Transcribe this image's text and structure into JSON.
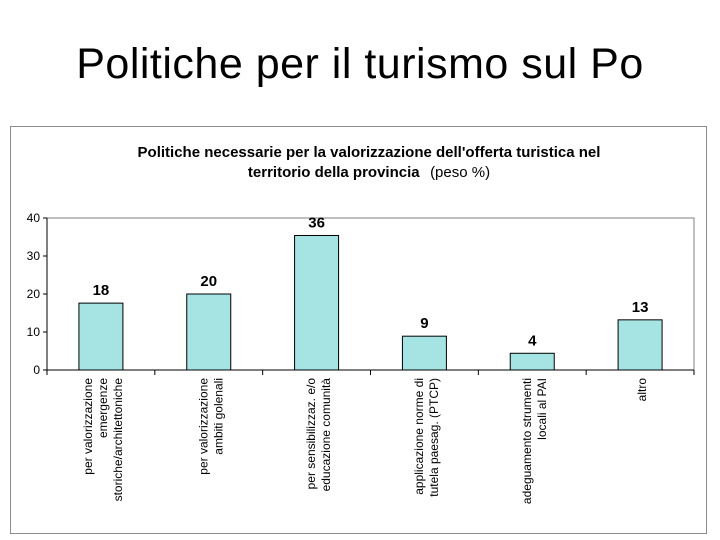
{
  "slide": {
    "title": "Politiche per il turismo sul Po"
  },
  "chart_data": {
    "type": "bar",
    "title_line1": "Politiche necessarie per la valorizzazione dell'offerta turistica nel",
    "title_line2_bold": "territorio della provincia",
    "title_line2_normal": "(peso %)",
    "categories": [
      [
        "per valorizzazione",
        "emergenze",
        "storiche/architettoniche"
      ],
      [
        "per valorizzazione",
        "ambiti golenali"
      ],
      [
        "per sensibilizzaz. e/o",
        "educazione comunità"
      ],
      [
        "applicazione norme di",
        "tutela paesag. (PTCP)"
      ],
      [
        "adeguamento strumenti",
        "locali al PAI"
      ],
      [
        "altro"
      ]
    ],
    "values": [
      18,
      20,
      36,
      9,
      4,
      13
    ],
    "heights": [
      17.6,
      20,
      35.4,
      8.9,
      4.4,
      13.2
    ],
    "ylim": [
      0,
      40
    ],
    "yticks": [
      0,
      10,
      20,
      30,
      40
    ],
    "grid": false,
    "bar_color": "#a6e3e3",
    "bar_stroke": "#000000"
  }
}
